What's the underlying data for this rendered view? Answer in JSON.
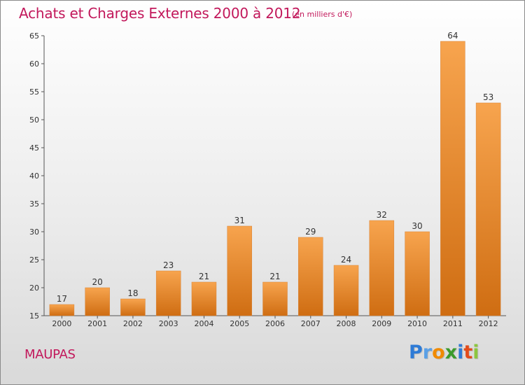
{
  "header": {
    "title": "Achats et Charges Externes 2000 à 2012",
    "subtitle": "(en milliers d'€)"
  },
  "footer": {
    "place": "MAUPAS",
    "logo": {
      "text": "Proxiti",
      "letters": [
        {
          "char": "P",
          "color": "#2e7bd6"
        },
        {
          "char": "r",
          "color": "#5aa0e6"
        },
        {
          "char": "o",
          "color": "#f08a00"
        },
        {
          "char": "x",
          "color": "#3c9a2c"
        },
        {
          "char": "i",
          "color": "#2e7bd6"
        },
        {
          "char": "t",
          "color": "#e24b1a"
        },
        {
          "char": "i",
          "color": "#8cc63f"
        }
      ]
    }
  },
  "colors": {
    "accent": "#c2185b",
    "bar_top": "#f7a44e",
    "bar_bottom": "#cf6d12"
  },
  "chart_data": {
    "type": "bar",
    "title": "Achats et Charges Externes 2000 à 2012",
    "subtitle": "(en milliers d'€)",
    "xlabel": "",
    "ylabel": "",
    "categories": [
      "2000",
      "2001",
      "2002",
      "2003",
      "2004",
      "2005",
      "2006",
      "2007",
      "2008",
      "2009",
      "2010",
      "2011",
      "2012"
    ],
    "values": [
      17,
      20,
      18,
      23,
      21,
      31,
      21,
      29,
      24,
      32,
      30,
      64,
      53
    ],
    "ylim": [
      15,
      65
    ],
    "yticks": [
      15,
      20,
      25,
      30,
      35,
      40,
      45,
      50,
      55,
      60,
      65
    ],
    "grid": false,
    "legend": "none"
  }
}
